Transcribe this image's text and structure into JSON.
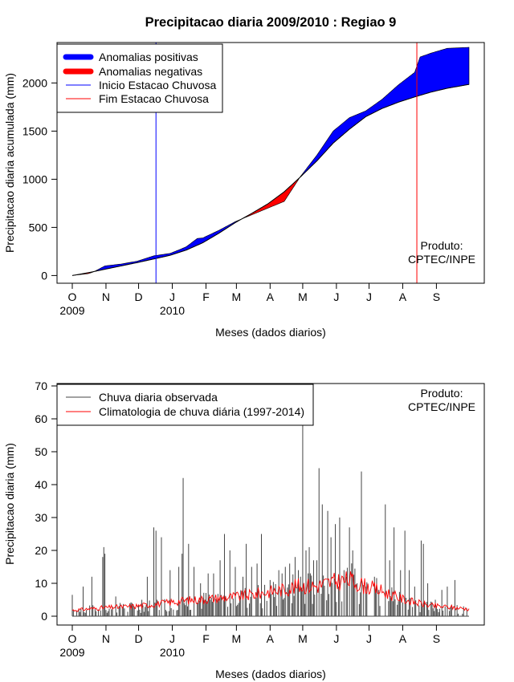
{
  "colors": {
    "positive": "#0000ff",
    "negative": "#ff0000",
    "onset": "#0000ff",
    "end": "#ff0000",
    "observed": "#444444",
    "climatology": "#ff0000"
  },
  "chart_data": [
    {
      "type": "area",
      "title": "Precipitacao diaria 2009/2010 : Regiao 9",
      "ylabel": "Precipitacao diaria acumulada (mm)",
      "xlabel": "Meses (dados diarios)",
      "ylim": [
        -80,
        2420
      ],
      "yticks": [
        0,
        500,
        1000,
        1500,
        2000
      ],
      "month_labels": [
        "O",
        "N",
        "D",
        "J",
        "F",
        "M",
        "A",
        "M",
        "J",
        "J",
        "A",
        "S"
      ],
      "year_labels": [
        {
          "day": 0,
          "text": "2009"
        },
        {
          "day": 92,
          "text": "2010"
        }
      ],
      "days_total": 365,
      "legend": {
        "position": "top-left",
        "entries": [
          "Anomalias positivas",
          "Anomalias negativas",
          "Inicio Estacao Chuvosa",
          "Fim Estacao Chuvosa"
        ]
      },
      "annotation": [
        "Produto:",
        "CPTEC/INPE"
      ],
      "onset_day": 77,
      "end_day": 317,
      "climatology_days": [
        0,
        15,
        30,
        45,
        60,
        75,
        90,
        105,
        120,
        135,
        150,
        165,
        180,
        195,
        210,
        225,
        240,
        255,
        270,
        285,
        300,
        315,
        330,
        345,
        365
      ],
      "climatology_cumulative": [
        0,
        30,
        65,
        100,
        135,
        172,
        210,
        265,
        340,
        440,
        550,
        645,
        745,
        870,
        1025,
        1190,
        1375,
        1520,
        1650,
        1735,
        1800,
        1855,
        1905,
        1945,
        1985
      ],
      "observed_days": [
        0,
        15,
        20,
        30,
        45,
        60,
        75,
        90,
        100,
        105,
        115,
        120,
        135,
        150,
        165,
        180,
        195,
        210,
        225,
        240,
        255,
        270,
        285,
        300,
        315,
        320,
        330,
        345,
        365
      ],
      "observed_cumulative": [
        0,
        20,
        40,
        100,
        120,
        150,
        205,
        230,
        275,
        300,
        385,
        390,
        470,
        560,
        630,
        700,
        770,
        1030,
        1250,
        1500,
        1640,
        1710,
        1830,
        1980,
        2110,
        2270,
        2310,
        2360,
        2370
      ]
    },
    {
      "type": "bar",
      "ylabel": "Precipitacao diaria (mm)",
      "xlabel": "Meses (dados diarios)",
      "ylim": [
        0,
        70
      ],
      "yticks": [
        0,
        10,
        20,
        30,
        40,
        50,
        60,
        70
      ],
      "month_labels": [
        "O",
        "N",
        "D",
        "J",
        "F",
        "M",
        "A",
        "M",
        "J",
        "J",
        "A",
        "S"
      ],
      "year_labels": [
        {
          "day": 0,
          "text": "2009"
        },
        {
          "day": 92,
          "text": "2010"
        }
      ],
      "days_total": 365,
      "legend": {
        "position": "top-left",
        "entries": [
          "Chuva diaria observada",
          "Climatologia de chuva diária (1997-2014)"
        ]
      },
      "annotation": [
        "Produto:",
        "CPTEC/INPE"
      ],
      "observed_peaks": [
        {
          "day": 0,
          "value": 6.5
        },
        {
          "day": 10,
          "value": 9
        },
        {
          "day": 18,
          "value": 12
        },
        {
          "day": 28,
          "value": 18
        },
        {
          "day": 29,
          "value": 21
        },
        {
          "day": 30,
          "value": 19
        },
        {
          "day": 40,
          "value": 6
        },
        {
          "day": 55,
          "value": 4
        },
        {
          "day": 64,
          "value": 5
        },
        {
          "day": 69,
          "value": 12
        },
        {
          "day": 75,
          "value": 27
        },
        {
          "day": 77,
          "value": 26
        },
        {
          "day": 82,
          "value": 24
        },
        {
          "day": 90,
          "value": 14
        },
        {
          "day": 98,
          "value": 15
        },
        {
          "day": 101,
          "value": 19
        },
        {
          "day": 102,
          "value": 42
        },
        {
          "day": 107,
          "value": 22
        },
        {
          "day": 112,
          "value": 15
        },
        {
          "day": 118,
          "value": 10
        },
        {
          "day": 125,
          "value": 13
        },
        {
          "day": 130,
          "value": 13
        },
        {
          "day": 136,
          "value": 17
        },
        {
          "day": 140,
          "value": 25
        },
        {
          "day": 145,
          "value": 20
        },
        {
          "day": 150,
          "value": 15
        },
        {
          "day": 157,
          "value": 12
        },
        {
          "day": 160,
          "value": 22
        },
        {
          "day": 165,
          "value": 15
        },
        {
          "day": 170,
          "value": 16
        },
        {
          "day": 174,
          "value": 25
        },
        {
          "day": 182,
          "value": 11
        },
        {
          "day": 190,
          "value": 14
        },
        {
          "day": 193,
          "value": 13
        },
        {
          "day": 196,
          "value": 15
        },
        {
          "day": 200,
          "value": 16
        },
        {
          "day": 205,
          "value": 18
        },
        {
          "day": 208,
          "value": 14
        },
        {
          "day": 212,
          "value": 58
        },
        {
          "day": 215,
          "value": 20
        },
        {
          "day": 218,
          "value": 21
        },
        {
          "day": 222,
          "value": 17
        },
        {
          "day": 225,
          "value": 17
        },
        {
          "day": 227,
          "value": 45
        },
        {
          "day": 230,
          "value": 34
        },
        {
          "day": 235,
          "value": 32
        },
        {
          "day": 238,
          "value": 24
        },
        {
          "day": 242,
          "value": 28
        },
        {
          "day": 246,
          "value": 30
        },
        {
          "day": 250,
          "value": 14
        },
        {
          "day": 255,
          "value": 27
        },
        {
          "day": 258,
          "value": 20
        },
        {
          "day": 262,
          "value": 10
        },
        {
          "day": 266,
          "value": 44
        },
        {
          "day": 270,
          "value": 9
        },
        {
          "day": 278,
          "value": 12
        },
        {
          "day": 282,
          "value": 8
        },
        {
          "day": 288,
          "value": 34
        },
        {
          "day": 292,
          "value": 17
        },
        {
          "day": 296,
          "value": 27
        },
        {
          "day": 302,
          "value": 14
        },
        {
          "day": 306,
          "value": 26
        },
        {
          "day": 310,
          "value": 14
        },
        {
          "day": 315,
          "value": 9
        },
        {
          "day": 321,
          "value": 23
        },
        {
          "day": 323,
          "value": 22
        },
        {
          "day": 327,
          "value": 10
        },
        {
          "day": 334,
          "value": 5
        },
        {
          "day": 340,
          "value": 8
        },
        {
          "day": 345,
          "value": 9
        },
        {
          "day": 352,
          "value": 11
        },
        {
          "day": 360,
          "value": 3
        }
      ],
      "climatology_days": [
        0,
        15,
        30,
        45,
        60,
        75,
        90,
        105,
        120,
        135,
        150,
        165,
        180,
        195,
        210,
        225,
        240,
        255,
        270,
        285,
        300,
        315,
        330,
        345,
        365
      ],
      "climatology_values": [
        1.8,
        2.2,
        2.6,
        2.8,
        3.1,
        3.6,
        4.2,
        4.8,
        5.1,
        5.5,
        5.9,
        6.5,
        7.4,
        8.1,
        9.3,
        9.2,
        10.4,
        11.0,
        9.1,
        7.6,
        5.6,
        4.2,
        3.2,
        2.8,
        2.2
      ]
    }
  ]
}
